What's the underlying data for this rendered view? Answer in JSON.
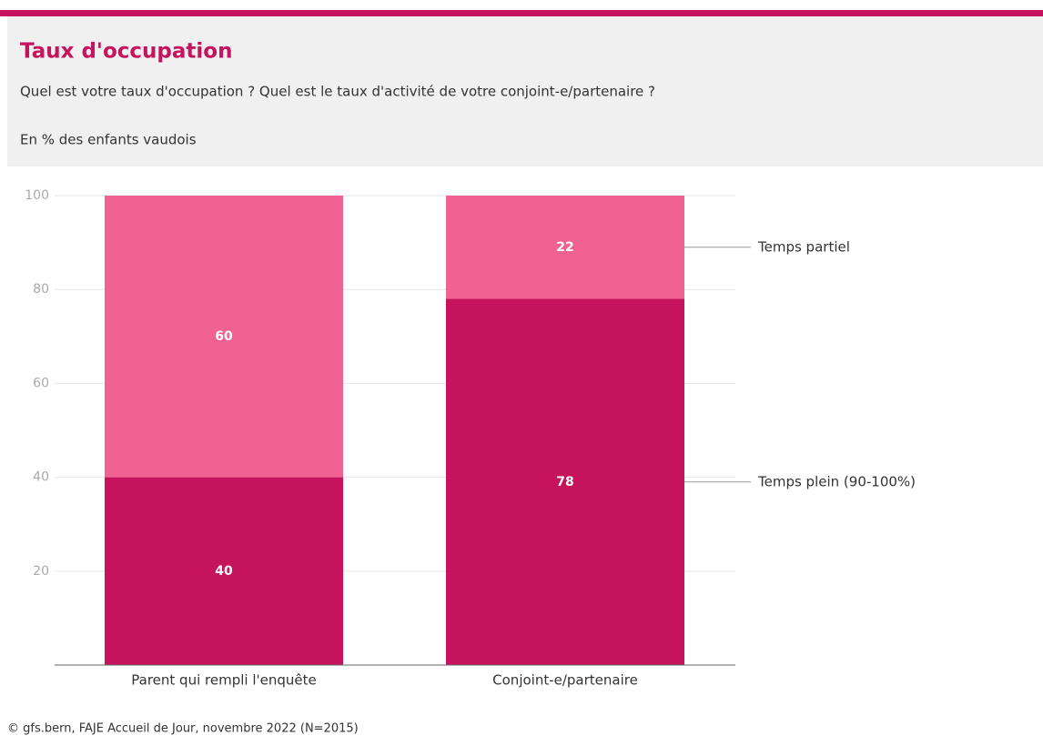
{
  "chart_data": {
    "type": "stacked_bar",
    "title": "Taux d'occupation",
    "subtitle": "Quel est votre taux d'occupation ? Quel est le taux d'activité de votre conjoint-e/partenaire ?",
    "unit_note": "En % des enfants vaudois",
    "source": "© gfs.bern, FAJE Accueil de Jour, novembre 2022 (N=2015)",
    "categories": [
      "Parent qui rempli l'enquête",
      "Conjoint-e/partenaire"
    ],
    "series": [
      {
        "name": "Temps plein (90-100%)",
        "color": "#c5135d",
        "values": [
          40,
          78
        ]
      },
      {
        "name": "Temps partiel",
        "color": "#f06292",
        "values": [
          60,
          22
        ]
      }
    ],
    "ylim": [
      0,
      100
    ],
    "yticks": [
      20,
      40,
      60,
      80,
      100
    ],
    "grid": true,
    "legend": "right"
  }
}
